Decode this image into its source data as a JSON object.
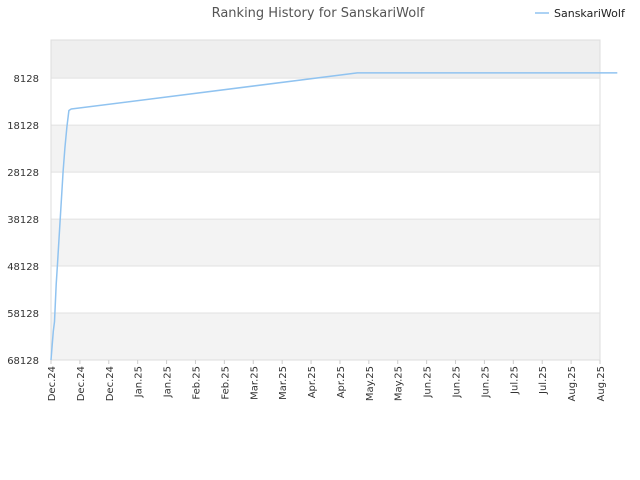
{
  "chart_data": {
    "type": "line",
    "title": "Ranking History for SanskariWolf",
    "xlabel": "",
    "ylabel": "",
    "y_reversed": true,
    "ylim": [
      68128,
      0
    ],
    "y_ticks": [
      "8128",
      "18128",
      "28128",
      "38128",
      "48128",
      "58128",
      "68128"
    ],
    "y_tick_values": [
      8128,
      18128,
      28128,
      38128,
      48128,
      58128,
      68128
    ],
    "x_ticks": [
      "Dec.24",
      "Dec.24",
      "Dec.24",
      "Jan.25",
      "Jan.25",
      "Feb.25",
      "Feb.25",
      "Mar.25",
      "Mar.25",
      "Apr.25",
      "Apr.25",
      "May.25",
      "May.25",
      "Jun.25",
      "Jun.25",
      "Jun.25",
      "Jul.25",
      "Jul.25",
      "Aug.25",
      "Aug.25"
    ],
    "legend": "top-right",
    "grid": true,
    "series": [
      {
        "name": "SanskariWolf",
        "color": "#90c3f0",
        "points": [
          [
            0.0,
            68128
          ],
          [
            0.08,
            62000
          ],
          [
            0.12,
            60000
          ],
          [
            0.18,
            52000
          ],
          [
            0.22,
            48000
          ],
          [
            0.28,
            42000
          ],
          [
            0.35,
            35000
          ],
          [
            0.42,
            28000
          ],
          [
            0.48,
            23000
          ],
          [
            0.55,
            18500
          ],
          [
            0.62,
            15000
          ],
          [
            0.7,
            14700
          ],
          [
            10.6,
            7000
          ],
          [
            19.6,
            7000
          ]
        ]
      }
    ]
  }
}
